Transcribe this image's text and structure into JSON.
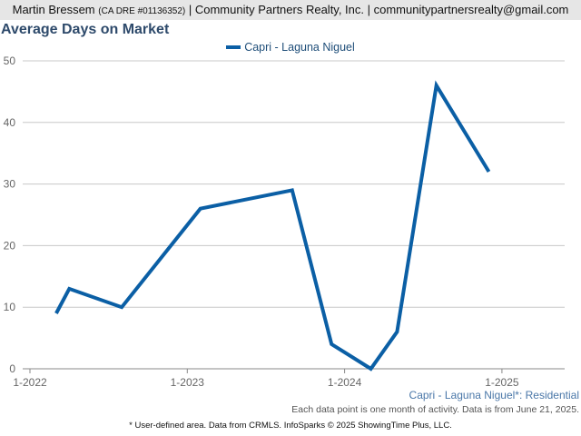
{
  "header": {
    "agent_name": "Martin Bressem",
    "license": "(CA DRE #01136352)",
    "rest": "| Community Partners Realty, Inc. | communitypartnersrealty@gmail.com"
  },
  "chart_data": {
    "type": "line",
    "title": "Average Days on Market",
    "xlabel": "",
    "ylabel": "",
    "ylim": [
      0,
      50
    ],
    "yticks": [
      0,
      10,
      20,
      30,
      40,
      50
    ],
    "x_ticks": [
      "1-2022",
      "1-2023",
      "1-2024",
      "1-2025"
    ],
    "legend_position": "top-center",
    "grid": true,
    "series": [
      {
        "name": "Capri - Laguna Niguel",
        "color": "#0b5fa5",
        "points": [
          {
            "x": "2022-03",
            "y": 9
          },
          {
            "x": "2022-04",
            "y": 13
          },
          {
            "x": "2022-08",
            "y": 10
          },
          {
            "x": "2023-02",
            "y": 26
          },
          {
            "x": "2023-09",
            "y": 29
          },
          {
            "x": "2023-12",
            "y": 4
          },
          {
            "x": "2024-03",
            "y": 0
          },
          {
            "x": "2024-05",
            "y": 6
          },
          {
            "x": "2024-08",
            "y": 46
          },
          {
            "x": "2024-12",
            "y": 32
          }
        ]
      }
    ]
  },
  "footer": {
    "series_note": "Capri - Laguna Niguel*: Residential",
    "data_note": "Each data point is one month of activity. Data is from June 21, 2025.",
    "source_note": "* User-defined area. Data from CRMLS. InfoSparks © 2025 ShowingTime Plus, LLC."
  }
}
